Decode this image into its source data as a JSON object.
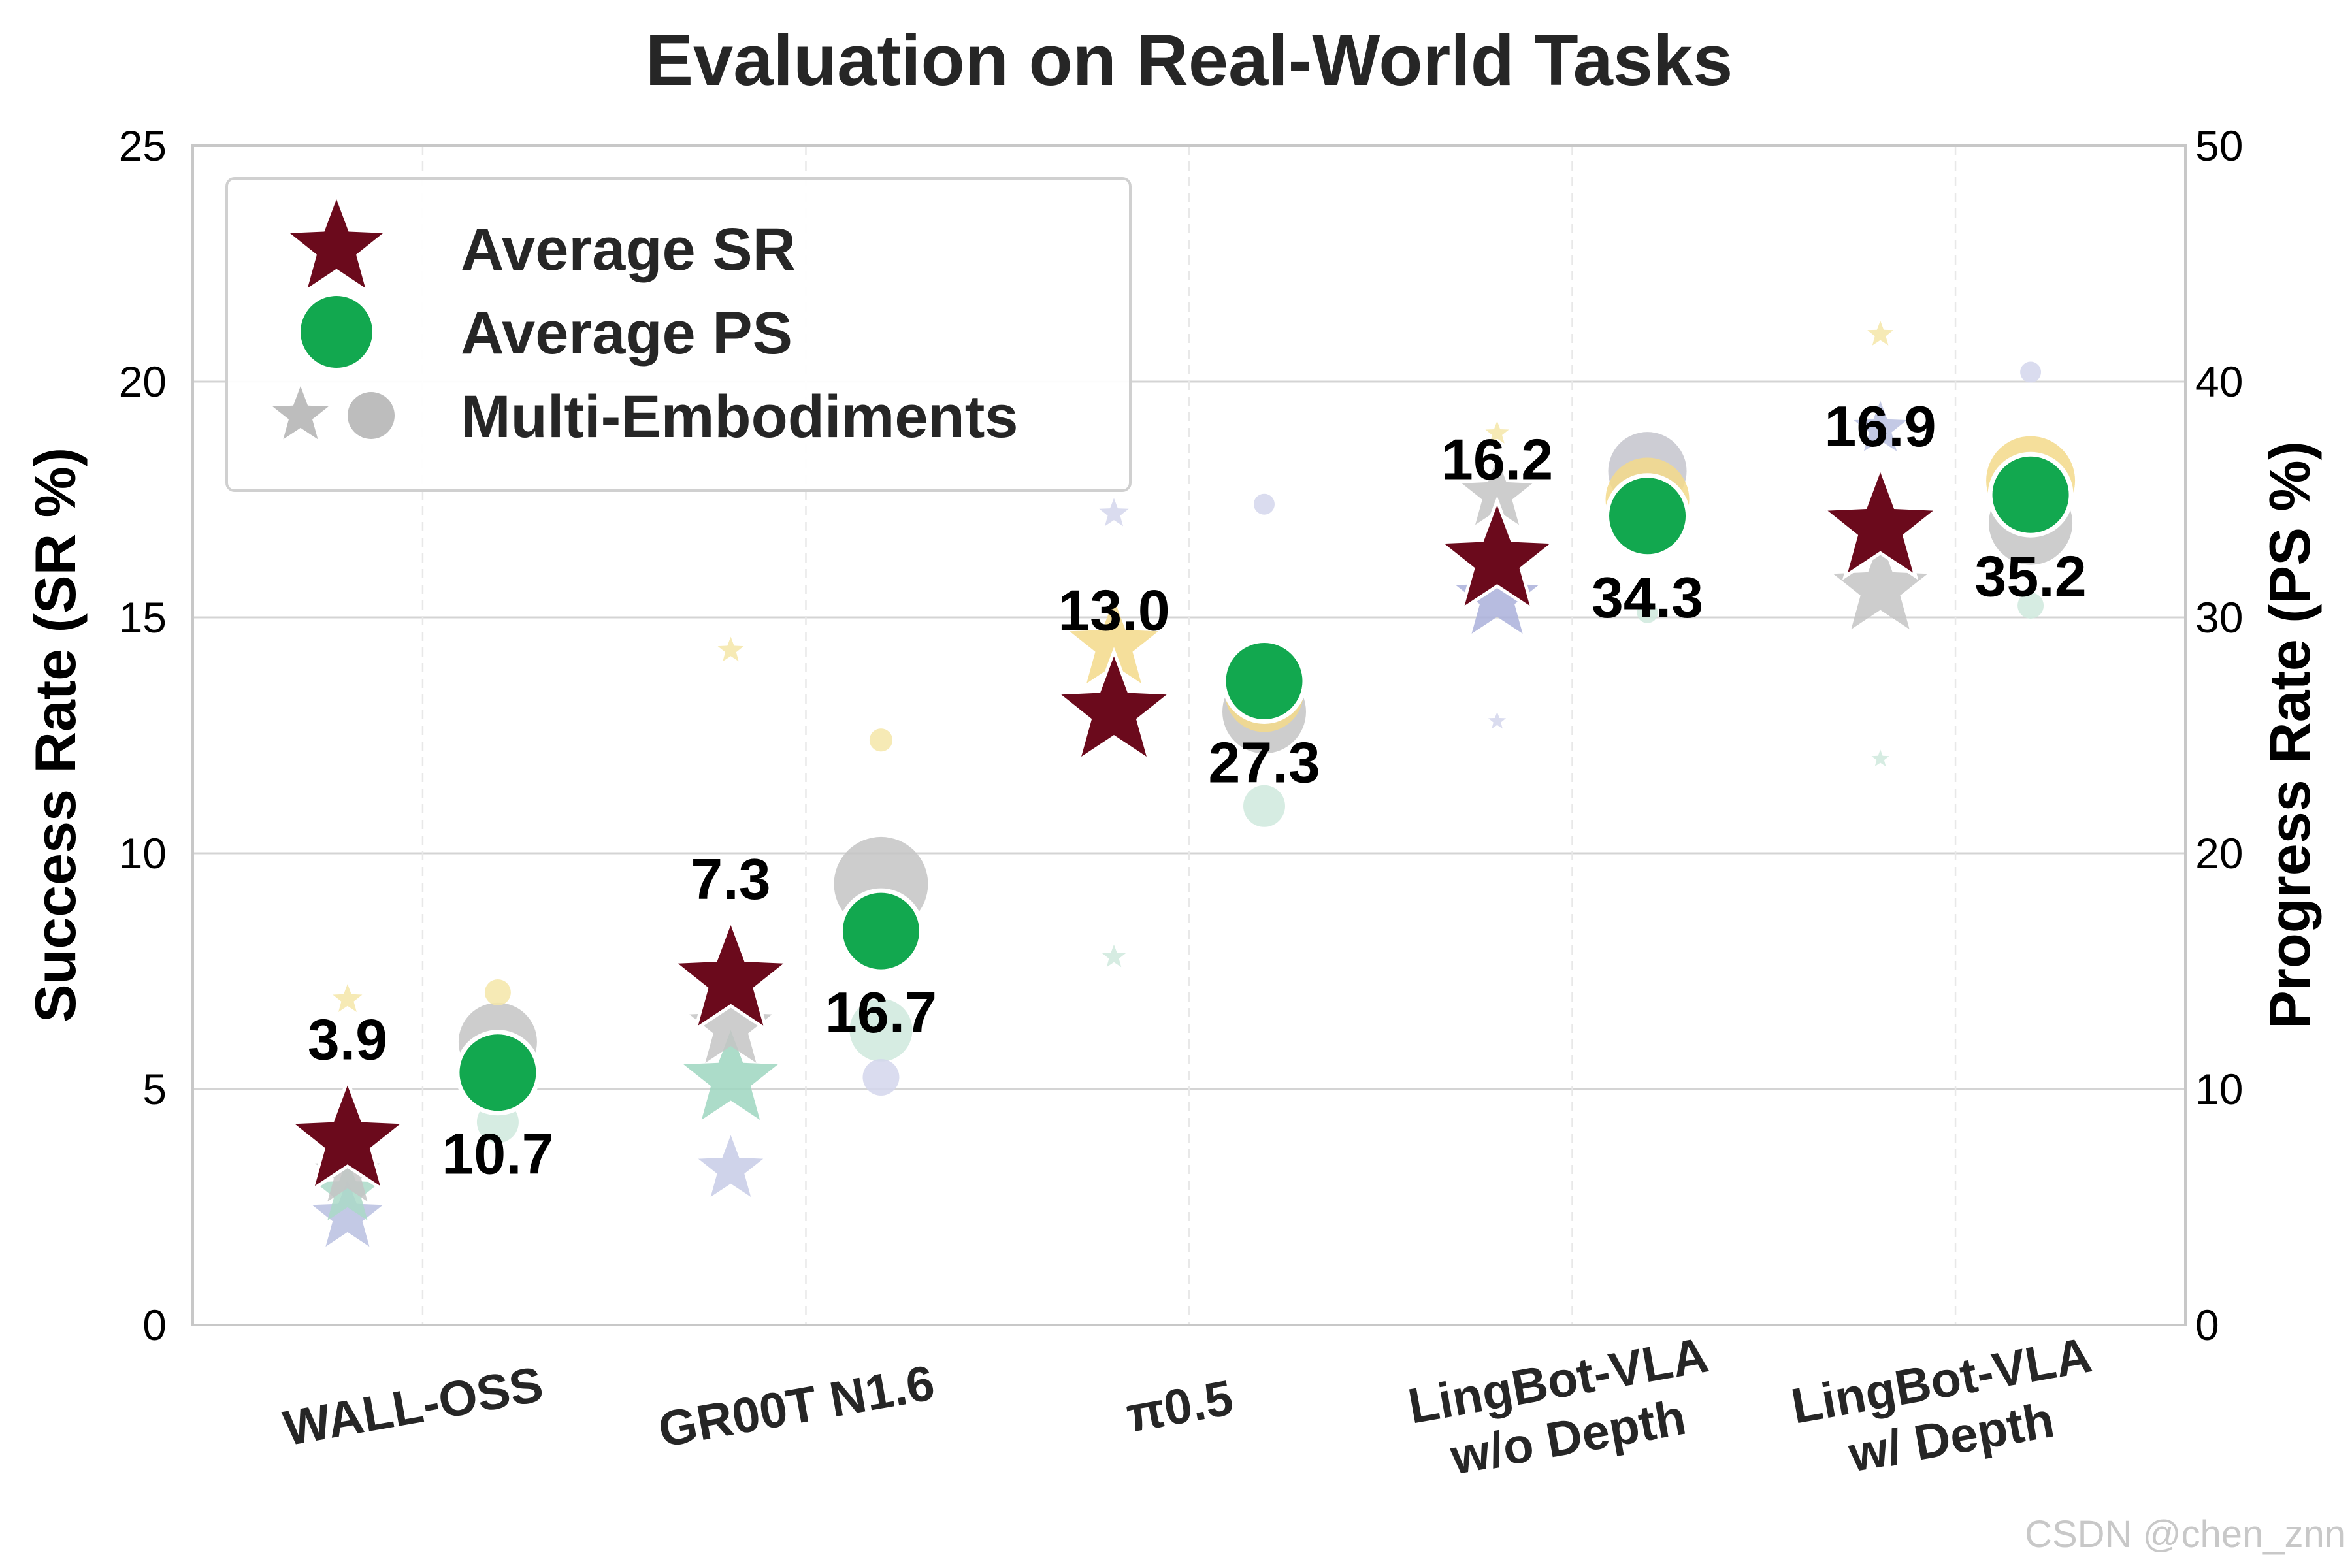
{
  "chart_data": {
    "type": "scatter",
    "title": "Evaluation on Real-World Tasks",
    "ylabel_left": "Success Rate (SR %)",
    "ylabel_right": "Progress Rate (PS %)",
    "ylim_left": [
      0,
      25
    ],
    "ylim_right": [
      0,
      50
    ],
    "yticks_left": [
      "0",
      "5",
      "10",
      "15",
      "20",
      "25"
    ],
    "yticks_right": [
      "0",
      "10",
      "20",
      "30",
      "40",
      "50"
    ],
    "grid": true,
    "legend_position": "upper-left",
    "categories": [
      "WALL-OSS",
      "GR00T N1.6",
      "π0.5",
      "LingBot-VLA|w/o Depth",
      "LingBot-VLA|w/ Depth"
    ],
    "series": [
      {
        "name": "Average SR",
        "marker": "star",
        "axis": "left",
        "color": "#6b0a1c",
        "values": [
          3.9,
          7.3,
          13.0,
          16.2,
          16.9
        ],
        "labels": [
          "3.9",
          "7.3",
          "13.0",
          "16.2",
          "16.9"
        ]
      },
      {
        "name": "Average PS",
        "marker": "circle",
        "axis": "right",
        "color": "#12a84f",
        "values": [
          10.7,
          16.7,
          27.3,
          34.3,
          35.2
        ],
        "labels": [
          "10.7",
          "16.7",
          "27.3",
          "34.3",
          "35.2"
        ]
      }
    ],
    "multi_embodiments": {
      "name": "Multi-Embodiments",
      "sr_points": [
        {
          "cat": 0,
          "value": 2.3,
          "color": "#b9bfe0",
          "size": 0.6
        },
        {
          "cat": 0,
          "value": 2.8,
          "color": "#aad9c8",
          "size": 0.55
        },
        {
          "cat": 0,
          "value": 3.2,
          "color": "#c4c4c4",
          "size": 0.55
        },
        {
          "cat": 0,
          "value": 6.9,
          "color": "#f5e6a8",
          "size": 0.25
        },
        {
          "cat": 1,
          "value": 3.3,
          "color": "#c7cbe6",
          "size": 0.55
        },
        {
          "cat": 1,
          "value": 5.2,
          "color": "#9ed6bf",
          "size": 0.8
        },
        {
          "cat": 1,
          "value": 6.3,
          "color": "#c4c4c4",
          "size": 0.7
        },
        {
          "cat": 1,
          "value": 14.3,
          "color": "#f5e6a8",
          "size": 0.22
        },
        {
          "cat": 2,
          "value": 7.8,
          "color": "#cfe9dd",
          "size": 0.2
        },
        {
          "cat": 2,
          "value": 14.4,
          "color": "#f3d98a",
          "size": 0.75
        },
        {
          "cat": 2,
          "value": 17.2,
          "color": "#d3d6ec",
          "size": 0.25
        },
        {
          "cat": 3,
          "value": 12.8,
          "color": "#d3d6ec",
          "size": 0.15
        },
        {
          "cat": 3,
          "value": 15.4,
          "color": "#aab0da",
          "size": 0.7
        },
        {
          "cat": 3,
          "value": 17.6,
          "color": "#c4c4c4",
          "size": 0.6
        },
        {
          "cat": 3,
          "value": 18.9,
          "color": "#f5e6a8",
          "size": 0.2
        },
        {
          "cat": 4,
          "value": 12.0,
          "color": "#cfe9dd",
          "size": 0.15
        },
        {
          "cat": 4,
          "value": 15.6,
          "color": "#c4c4c4",
          "size": 0.8
        },
        {
          "cat": 4,
          "value": 19.0,
          "color": "#b9bfe0",
          "size": 0.45
        },
        {
          "cat": 4,
          "value": 21.0,
          "color": "#f5e6a8",
          "size": 0.22
        }
      ],
      "ps_points": [
        {
          "cat": 0,
          "value": 12.0,
          "color": "#c4c4c4",
          "size": 0.75
        },
        {
          "cat": 0,
          "value": 8.6,
          "color": "#cfe9dd",
          "size": 0.4
        },
        {
          "cat": 0,
          "value": 14.1,
          "color": "#f5e6a8",
          "size": 0.25
        },
        {
          "cat": 1,
          "value": 18.7,
          "color": "#c4c4c4",
          "size": 0.9
        },
        {
          "cat": 1,
          "value": 12.5,
          "color": "#cfe9dd",
          "size": 0.6
        },
        {
          "cat": 1,
          "value": 10.5,
          "color": "#d3d6ec",
          "size": 0.35
        },
        {
          "cat": 1,
          "value": 24.8,
          "color": "#f5e6a8",
          "size": 0.22
        },
        {
          "cat": 2,
          "value": 26.0,
          "color": "#c4c4c4",
          "size": 0.8
        },
        {
          "cat": 2,
          "value": 26.8,
          "color": "#f3d98a",
          "size": 0.75
        },
        {
          "cat": 2,
          "value": 22.0,
          "color": "#cfe9dd",
          "size": 0.4
        },
        {
          "cat": 2,
          "value": 34.8,
          "color": "#d3d6ec",
          "size": 0.2
        },
        {
          "cat": 3,
          "value": 36.2,
          "color": "#c4c4cd",
          "size": 0.75
        },
        {
          "cat": 3,
          "value": 35.0,
          "color": "#f3d98a",
          "size": 0.8
        },
        {
          "cat": 3,
          "value": 30.2,
          "color": "#cfe9dd",
          "size": 0.2
        },
        {
          "cat": 4,
          "value": 34.0,
          "color": "#c4c4c4",
          "size": 0.8
        },
        {
          "cat": 4,
          "value": 35.8,
          "color": "#f3d98a",
          "size": 0.85
        },
        {
          "cat": 4,
          "value": 30.5,
          "color": "#cfe9dd",
          "size": 0.25
        },
        {
          "cat": 4,
          "value": 40.4,
          "color": "#d3d6ec",
          "size": 0.2
        }
      ]
    }
  },
  "legend": {
    "items": [
      {
        "label": "Average SR",
        "icon": "star-icon",
        "color": "#6b0a1c"
      },
      {
        "label": "Average PS",
        "icon": "circle-icon",
        "color": "#12a84f"
      },
      {
        "label": "Multi-Embodiments",
        "icon": "star-and-circle-icon",
        "color": "#bdbdbd"
      }
    ]
  },
  "watermark": "CSDN @chen_znn"
}
